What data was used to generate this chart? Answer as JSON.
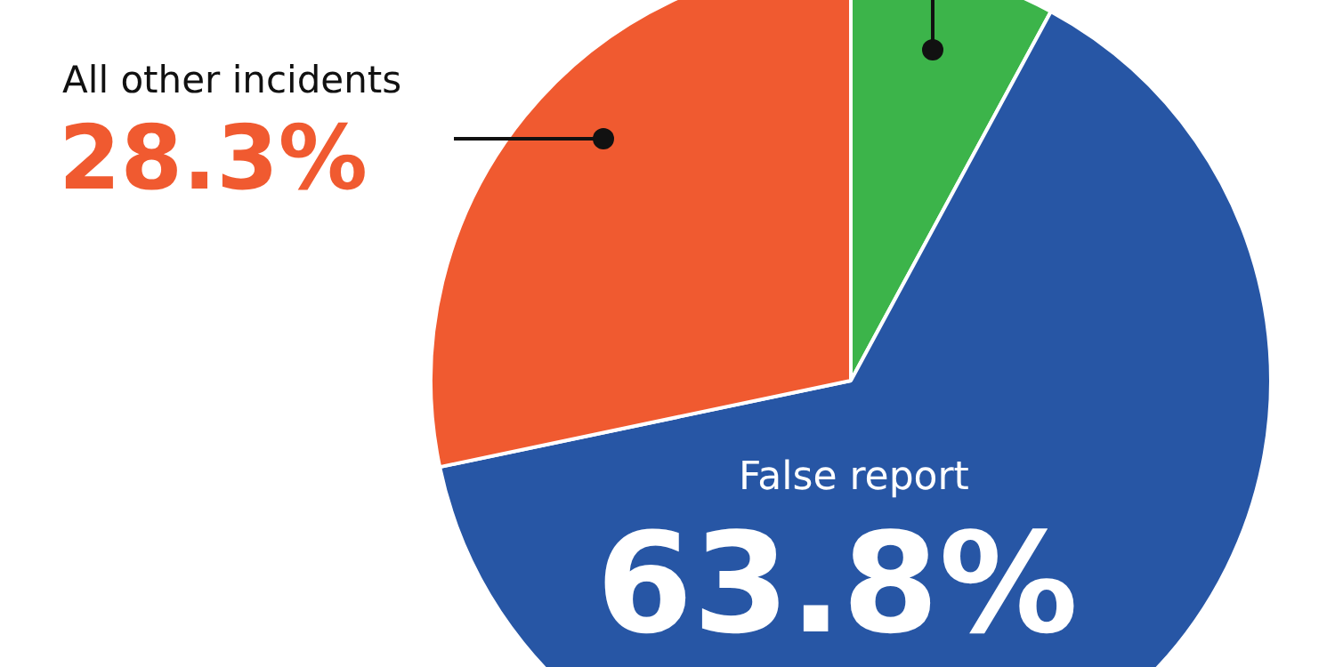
{
  "chart_data": {
    "type": "pie",
    "categories": [
      null,
      "False report",
      "All other incidents"
    ],
    "values": [
      7.9,
      63.8,
      28.3
    ],
    "value_labels": [
      null,
      "63.8%",
      "28.3%"
    ],
    "colors": [
      "#3cb44a",
      "#2756a5",
      "#f05a30"
    ],
    "legend": false
  }
}
